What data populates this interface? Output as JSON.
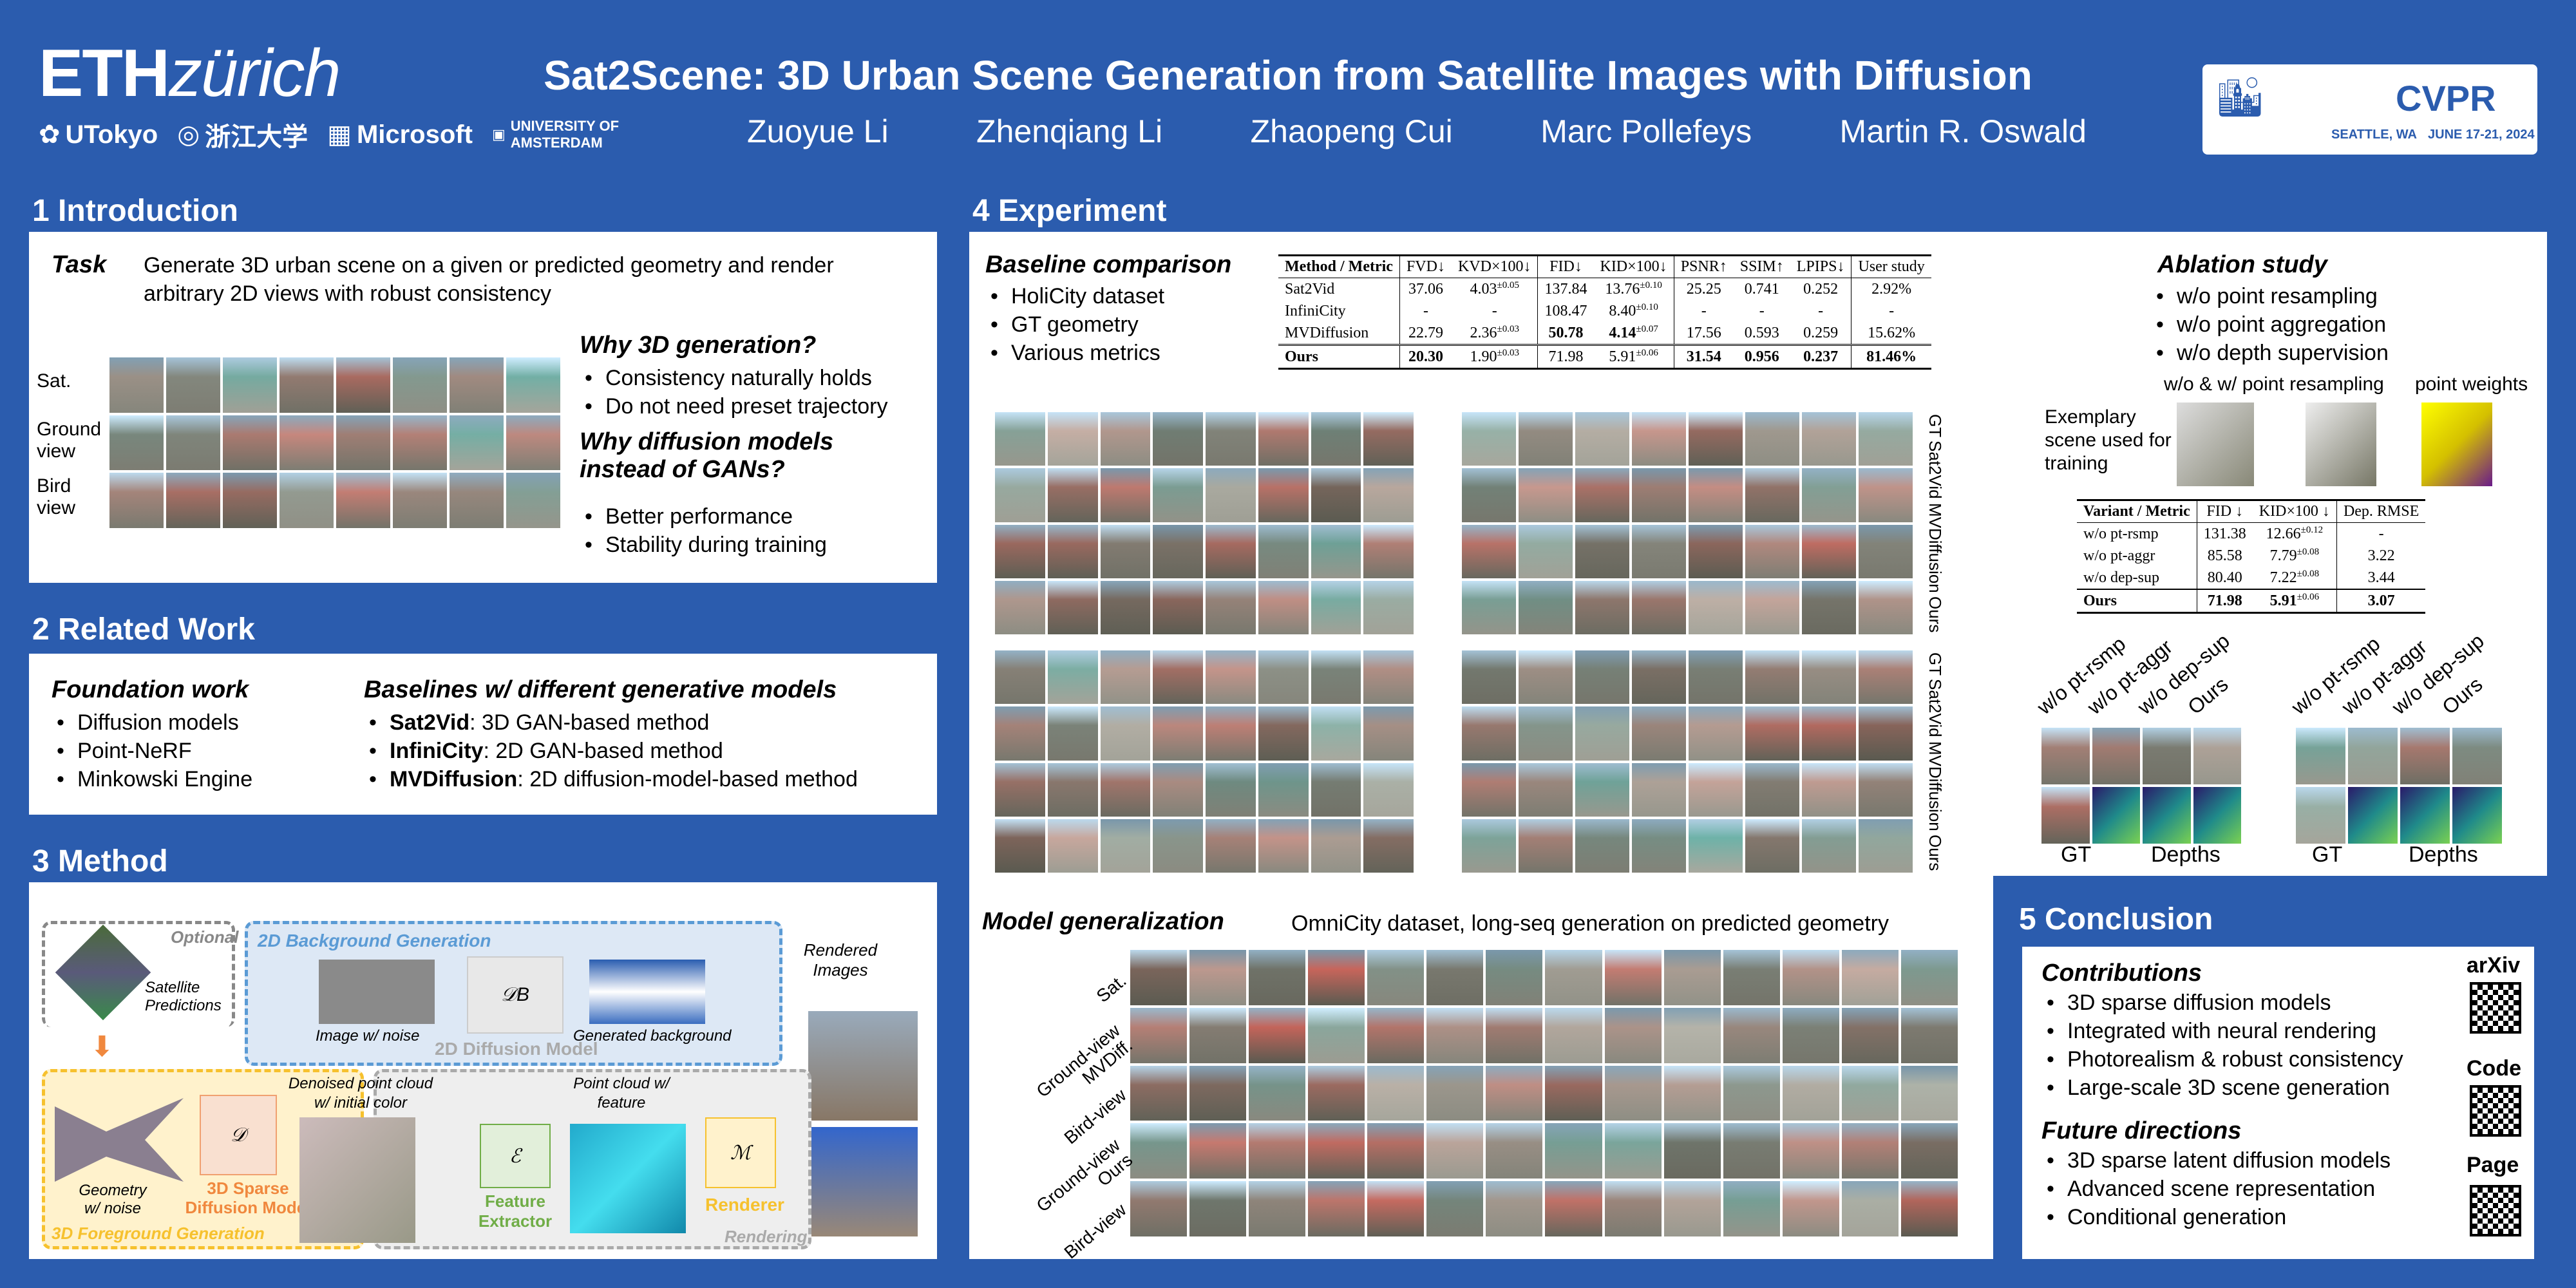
{
  "header": {
    "eth_logo": "ETHzürich",
    "eth_bold": "ETH",
    "eth_italic": "zürich",
    "title": "Sat2Scene: 3D Urban Scene Generation from Satellite Images with Diffusion",
    "authors": [
      "Zuoyue Li",
      "Zhenqiang Li",
      "Zhaopeng Cui",
      "Marc Pollefeys",
      "Martin R. Oswald"
    ],
    "affiliations": [
      "UTokyo",
      "浙江大学",
      "Microsoft",
      "UNIVERSITY OF AMSTERDAM"
    ],
    "conference": {
      "name": "CVPR",
      "location": "SEATTLE, WA",
      "dates": "JUNE 17-21, 2024"
    }
  },
  "intro": {
    "heading": "1 Introduction",
    "task_label": "Task",
    "task_text": "Generate 3D urban scene on a given or predicted geometry and render arbitrary 2D views with robust consistency",
    "row_labels": [
      "Sat.",
      "Ground view",
      "Bird view"
    ],
    "why3d": {
      "title": "Why 3D generation?",
      "items": [
        "Consistency naturally holds",
        "Do not need preset trajectory"
      ]
    },
    "whydiff": {
      "title": "Why diffusion models instead of GANs?",
      "items": [
        "Better performance",
        "Stability during training"
      ]
    }
  },
  "related": {
    "heading": "2 Related Work",
    "foundation_title": "Foundation work",
    "foundation": [
      "Diffusion models",
      "Point-NeRF",
      "Minkowski Engine"
    ],
    "baselines_title": "Baselines w/ different generative models",
    "baselines": [
      {
        "name": "Sat2Vid",
        "desc": ": 3D GAN-based method"
      },
      {
        "name": "InfiniCity",
        "desc": ": 2D GAN-based method"
      },
      {
        "name": "MVDiffusion",
        "desc": ": 2D diffusion-model-based method"
      }
    ]
  },
  "method": {
    "heading": "3 Method",
    "optional": "Optional",
    "satellite": "Satellite Predictions",
    "bg_title": "2D Background Generation",
    "img_noise": "Image w/ noise",
    "db": "𝒟B",
    "gen_bg": "Generated background",
    "diff2d": "2D Diffusion Model",
    "rendered": "Rendered Images",
    "denoised": "Denoised point cloud w/ initial color",
    "pc_feature": "Point cloud w/ feature",
    "geometry": "Geometry w/ noise",
    "d": "𝒟",
    "sparse": "3D Sparse Diffusion Model",
    "e": "ℰ",
    "extractor": "Feature Extractor",
    "m": "ℳ",
    "renderer": "Renderer",
    "fg": "3D Foreground Generation",
    "rendering": "Rendering"
  },
  "experiment": {
    "heading": "4 Experiment",
    "baseline_title": "Baseline comparison",
    "baseline_items": [
      "HoliCity dataset",
      "GT geometry",
      "Various metrics"
    ],
    "table": {
      "headers": [
        "Method / Metric",
        "FVD↓",
        "KVD×100↓",
        "FID↓",
        "KID×100↓",
        "PSNR↑",
        "SSIM↑",
        "LPIPS↓",
        "User study"
      ],
      "rows": [
        [
          "Sat2Vid",
          "37.06",
          "4.03",
          "±0.05",
          "137.84",
          "13.76",
          "±0.10",
          "25.25",
          "0.741",
          "0.252",
          "2.92%"
        ],
        [
          "InfiniCity",
          "-",
          "-",
          "",
          "108.47",
          "8.40",
          "±0.10",
          "-",
          "-",
          "-",
          "-"
        ],
        [
          "MVDiffusion",
          "22.79",
          "2.36",
          "±0.03",
          "50.78",
          "4.14",
          "±0.07",
          "17.56",
          "0.593",
          "0.259",
          "15.62%"
        ],
        [
          "Ours",
          "20.30",
          "1.90",
          "±0.03",
          "71.98",
          "5.91",
          "±0.06",
          "31.54",
          "0.956",
          "0.237",
          "81.46%"
        ]
      ]
    },
    "grid_labels": [
      "GT",
      "Sat2Vid",
      "MVDiffusion",
      "Ours"
    ],
    "gen_title": "Model generalization",
    "gen_text": "OmniCity dataset, long-seq generation on predicted geometry",
    "gen_labels": [
      "Sat.",
      "Ground-view MVDiff.",
      "Bird-view",
      "Ground-view Ours",
      "Bird-view"
    ]
  },
  "ablation": {
    "title": "Ablation study",
    "items": [
      "w/o point resampling",
      "w/o point aggregation",
      "w/o depth supervision"
    ],
    "resample_label": "w/o & w/ point resampling",
    "weights_label": "point weights",
    "exemplary": "Exemplary scene used for training",
    "table": {
      "headers": [
        "Variant / Metric",
        "FID ↓",
        "KID×100 ↓",
        "Dep. RMSE"
      ],
      "rows": [
        [
          "w/o pt-rsmp",
          "131.38",
          "12.66",
          "±0.12",
          "-"
        ],
        [
          "w/o pt-aggr",
          "85.58",
          "7.79",
          "±0.08",
          "3.22"
        ],
        [
          "w/o dep-sup",
          "80.40",
          "7.22",
          "±0.08",
          "3.44"
        ],
        [
          "Ours",
          "71.98",
          "5.91",
          "±0.06",
          "3.07"
        ]
      ]
    },
    "col_labels": [
      "w/o pt-rsmp",
      "w/o pt-aggr",
      "w/o dep-sup",
      "Ours"
    ],
    "gt": "GT",
    "depths": "Depths"
  },
  "conclusion": {
    "heading": "5 Conclusion",
    "contrib_title": "Contributions",
    "contrib": [
      "3D sparse diffusion models",
      "Integrated with neural rendering",
      "Photorealism & robust consistency",
      "Large-scale 3D scene generation"
    ],
    "future_title": "Future directions",
    "future": [
      "3D sparse latent diffusion models",
      "Advanced scene representation",
      "Conditional generation"
    ],
    "qr_labels": [
      "arXiv",
      "Code",
      "Page"
    ]
  },
  "colors": {
    "background": "#2b5cae",
    "orange": "#f0883e",
    "green": "#70ad47",
    "yellow": "#f6c12e",
    "blue": "#5b9bd5"
  }
}
